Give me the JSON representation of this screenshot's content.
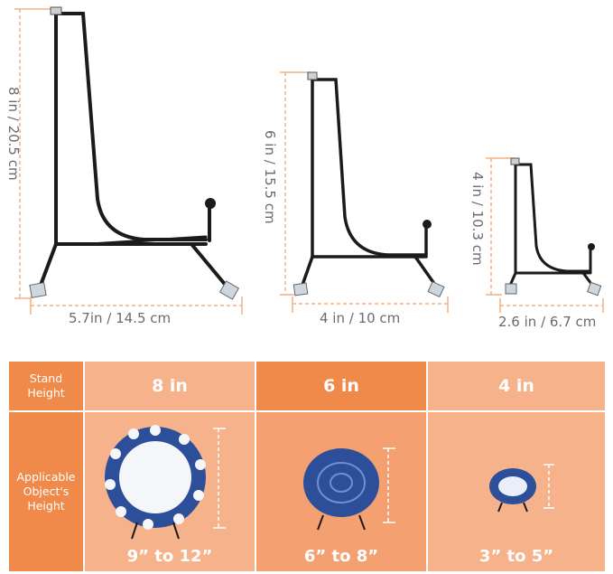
{
  "stands": [
    {
      "height_label": "8 in / 20.5 cm",
      "width_label": "5.7in / 14.5 cm"
    },
    {
      "height_label": "6 in / 15.5 cm",
      "width_label": "4 in / 10 cm"
    },
    {
      "height_label": "4 in / 10.3 cm",
      "width_label": "2.6 in / 6.7 cm"
    }
  ],
  "table": {
    "row1_header": "Stand\nHeight",
    "row2_header": "Applicable\nObject's\nHeight",
    "sizes": [
      "8 in",
      "6 in",
      "4 in"
    ],
    "ranges": [
      "9” to 12”",
      "6” to 8”",
      "3” to 5”"
    ]
  },
  "colors": {
    "dimension_line": "#f4b183",
    "header_cell": "#f08a4b",
    "light_cell": "#f6b38b",
    "mid_cell": "#f4a071",
    "stand": "#1b1b1b",
    "plate_blue": "#2d4f9a"
  }
}
